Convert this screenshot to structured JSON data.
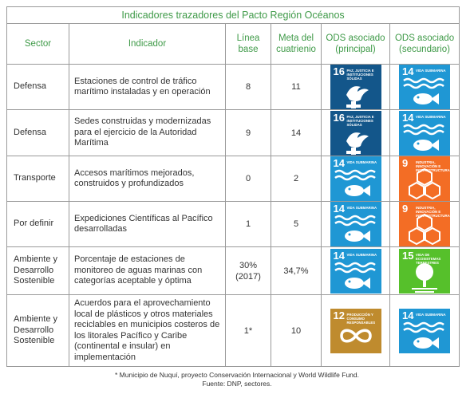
{
  "title": "Indicadores trazadores del Pacto Región Océanos",
  "headers": {
    "sector": "Sector",
    "indicador": "Indicador",
    "linea_base": "Línea base",
    "meta": "Meta del cuatrienio",
    "ods_principal": "ODS asociado (principal)",
    "ods_secundario": "ODS asociado (secundario)"
  },
  "ods": {
    "14": {
      "num": "14",
      "text": "VIDA SUBMARINA",
      "color": "#1f97d4",
      "icon": "fish-waves-icon"
    },
    "16": {
      "num": "16",
      "text": "PAZ, JUSTICIA E INSTITUCIONES SÓLIDAS",
      "color": "#13568a",
      "icon": "dove-gavel-icon"
    },
    "9": {
      "num": "9",
      "text": "INDUSTRIA, INNOVACIÓN E INFRAESTRUCTURA",
      "color": "#f36d25",
      "icon": "cubes-icon"
    },
    "15": {
      "num": "15",
      "text": "VIDA DE ECOSISTEMAS TERRESTRES",
      "color": "#56c02b",
      "icon": "tree-icon"
    },
    "12": {
      "num": "12",
      "text": "PRODUCCIÓN Y CONSUMO RESPONSABLES",
      "color": "#bf8b2e",
      "icon": "infinity-icon"
    }
  },
  "rows": [
    {
      "sector": "Defensa",
      "indicador": "Estaciones de control de tráfico marítimo instaladas y en operación",
      "base": "8",
      "meta": "11",
      "principal": "16",
      "secundario": "14"
    },
    {
      "sector": "Defensa",
      "indicador": "Sedes construidas y modernizadas para el ejercicio de la Autoridad Marítima",
      "base": "9",
      "meta": "14",
      "principal": "16",
      "secundario": "14"
    },
    {
      "sector": "Transporte",
      "indicador": "Accesos marítimos mejorados, construidos y profundizados",
      "base": "0",
      "meta": "2",
      "principal": "14",
      "secundario": "9"
    },
    {
      "sector": "Por definir",
      "indicador": "Expediciones Científicas al Pacífico desarrolladas",
      "base": "1",
      "meta": "5",
      "principal": "14",
      "secundario": "9"
    },
    {
      "sector": "Ambiente y Desarrollo Sostenible",
      "indicador": "Porcentaje de estaciones de monitoreo de aguas marinas con categorías aceptable y óptima",
      "base": "30% (2017)",
      "meta": "34,7%",
      "principal": "14",
      "secundario": "15"
    },
    {
      "sector": "Ambiente y Desarrollo Sostenible",
      "indicador": "Acuerdos para el aprovechamiento local de plásticos y otros materiales reciclables en municipios costeros de los litorales Pacífico y Caribe (continental e insular) en implementación",
      "base": "1*",
      "meta": "10",
      "principal": "12",
      "secundario": "14"
    }
  ],
  "footnote": "* Municipio de Nuquí, proyecto Conservación Internacional y World Wildlife Fund.",
  "source": "Fuente: DNP, sectores."
}
